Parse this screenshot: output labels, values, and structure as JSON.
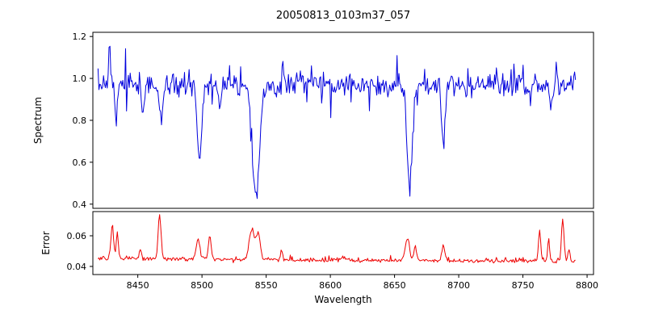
{
  "title": "20050813_0103m37_057",
  "chart_data": {
    "type": "line",
    "title": "20050813_0103m37_057",
    "background": "#ffffff",
    "grid": false,
    "legend": "none",
    "x": {
      "label": "Wavelength",
      "lim": [
        8415,
        8805
      ],
      "ticks": [
        8450,
        8500,
        8550,
        8600,
        8650,
        8700,
        8750,
        8800
      ],
      "tick_labels": [
        "8450",
        "8500",
        "8550",
        "8600",
        "8650",
        "8700",
        "8750",
        "8800"
      ],
      "data_start": 8419,
      "data_end": 8791,
      "n_points": 520
    },
    "subplots": [
      {
        "name": "spectrum",
        "ylabel": "Spectrum",
        "color": "#0000dd",
        "ylim": [
          0.38,
          1.22
        ],
        "yticks": [
          0.4,
          0.6,
          0.8,
          1.0,
          1.2
        ],
        "ytick_labels": [
          "0.4",
          "0.6",
          "0.8",
          "1.0",
          "1.2"
        ],
        "model": {
          "continuum": 0.97,
          "noise_sigma": 0.028,
          "down_spike_prob": 0.02,
          "up_spike_prob": 0.008,
          "absorption_lines": [
            {
              "center": 8433,
              "depth": 0.2,
              "sigma": 0.9
            },
            {
              "center": 8454,
              "depth": 0.14,
              "sigma": 0.8
            },
            {
              "center": 8468,
              "depth": 0.18,
              "sigma": 1.2
            },
            {
              "center": 8498,
              "depth": 0.34,
              "sigma": 1.8
            },
            {
              "center": 8514,
              "depth": 0.1,
              "sigma": 1.0
            },
            {
              "center": 8542,
              "depth": 0.55,
              "sigma": 2.8
            },
            {
              "center": 8662,
              "depth": 0.47,
              "sigma": 2.2
            },
            {
              "center": 8688,
              "depth": 0.26,
              "sigma": 1.4
            },
            {
              "center": 8772,
              "depth": 0.14,
              "sigma": 1.0
            }
          ],
          "emission_spikes": [
            {
              "center": 8428,
              "height": 0.19,
              "sigma": 0.7
            },
            {
              "center": 8563,
              "height": 0.12,
              "sigma": 0.7
            },
            {
              "center": 8776,
              "height": 0.11,
              "sigma": 0.7
            }
          ]
        }
      },
      {
        "name": "error",
        "ylabel": "Error",
        "color": "#ee0000",
        "ylim": [
          0.0347,
          0.0758
        ],
        "yticks": [
          0.04,
          0.06
        ],
        "ytick_labels": [
          "0.04",
          "0.06"
        ],
        "model": {
          "baseline_start": 0.0452,
          "baseline_end": 0.0432,
          "noise_sigma": 0.0007,
          "spikes": [
            {
              "center": 8430,
              "height": 0.022,
              "sigma": 1.0
            },
            {
              "center": 8434,
              "height": 0.017,
              "sigma": 0.8
            },
            {
              "center": 8452,
              "height": 0.006,
              "sigma": 0.8
            },
            {
              "center": 8467,
              "height": 0.03,
              "sigma": 1.1
            },
            {
              "center": 8497,
              "height": 0.013,
              "sigma": 1.4
            },
            {
              "center": 8506,
              "height": 0.016,
              "sigma": 1.0
            },
            {
              "center": 8539,
              "height": 0.02,
              "sigma": 2.2
            },
            {
              "center": 8544,
              "height": 0.016,
              "sigma": 1.5
            },
            {
              "center": 8562,
              "height": 0.005,
              "sigma": 0.8
            },
            {
              "center": 8610,
              "height": 0.003,
              "sigma": 0.8
            },
            {
              "center": 8660,
              "height": 0.015,
              "sigma": 1.6
            },
            {
              "center": 8666,
              "height": 0.009,
              "sigma": 1.0
            },
            {
              "center": 8688,
              "height": 0.01,
              "sigma": 1.1
            },
            {
              "center": 8763,
              "height": 0.02,
              "sigma": 0.9
            },
            {
              "center": 8770,
              "height": 0.014,
              "sigma": 0.9
            },
            {
              "center": 8781,
              "height": 0.027,
              "sigma": 1.0
            },
            {
              "center": 8786,
              "height": 0.007,
              "sigma": 0.8
            }
          ]
        }
      }
    ]
  }
}
